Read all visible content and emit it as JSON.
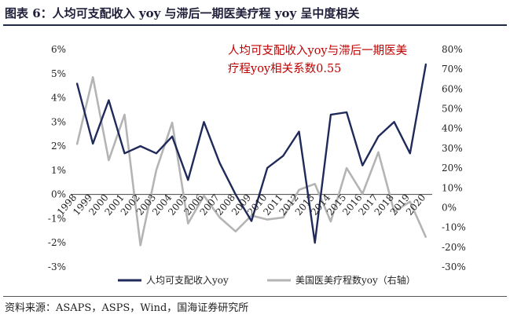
{
  "title": "图表 6：人均可支配收入 yoy 与滞后一期医美疗程 yoy 呈中度相关",
  "source": "资料来源：ASAPS，ASPS，Wind，国海证券研究所",
  "annotation": [
    "人均可支配收入yoy与滞后一期医美",
    "疗程yoy相关系数0.55"
  ],
  "colors": {
    "navy": "#1f2a5a",
    "grey": "#b4b4b4",
    "annotation": "#c00000"
  },
  "chart_data": {
    "type": "line",
    "categories": [
      "1998",
      "1999",
      "2000",
      "2001",
      "2002",
      "2003",
      "2004",
      "2005",
      "2006",
      "2007",
      "2008",
      "2009",
      "2010",
      "2011",
      "2012",
      "2013",
      "2014",
      "2015",
      "2016",
      "2017",
      "2018",
      "2019",
      "2020"
    ],
    "left_axis": {
      "ticks": [
        "-3%",
        "-2%",
        "-1%",
        "0%",
        "1%",
        "2%",
        "3%",
        "4%",
        "5%",
        "6%"
      ],
      "ylim": [
        -3,
        6
      ]
    },
    "right_axis": {
      "ticks": [
        "-30%",
        "-20%",
        "-10%",
        "0%",
        "10%",
        "20%",
        "30%",
        "40%",
        "50%",
        "60%",
        "70%",
        "80%"
      ],
      "ylim": [
        -30,
        80
      ]
    },
    "series": [
      {
        "name": "人均可支配收入yoy",
        "axis": "left",
        "color": "#1f2a5a",
        "values": [
          4.6,
          2.1,
          3.9,
          1.7,
          2.0,
          1.7,
          2.4,
          0.6,
          3.0,
          1.3,
          0.0,
          -1.1,
          1.1,
          1.6,
          2.6,
          -2.0,
          3.3,
          3.4,
          1.2,
          2.4,
          3.0,
          1.7,
          5.4
        ]
      },
      {
        "name": "美国医美疗程数yoy（右轴）",
        "axis": "right",
        "color": "#b4b4b4",
        "values": [
          32,
          66,
          24,
          47,
          -19,
          19,
          43,
          -8,
          6,
          -5,
          -12,
          -4,
          -6,
          -5,
          9,
          12,
          -7,
          20,
          7,
          28,
          -2,
          3,
          -15
        ]
      }
    ]
  }
}
